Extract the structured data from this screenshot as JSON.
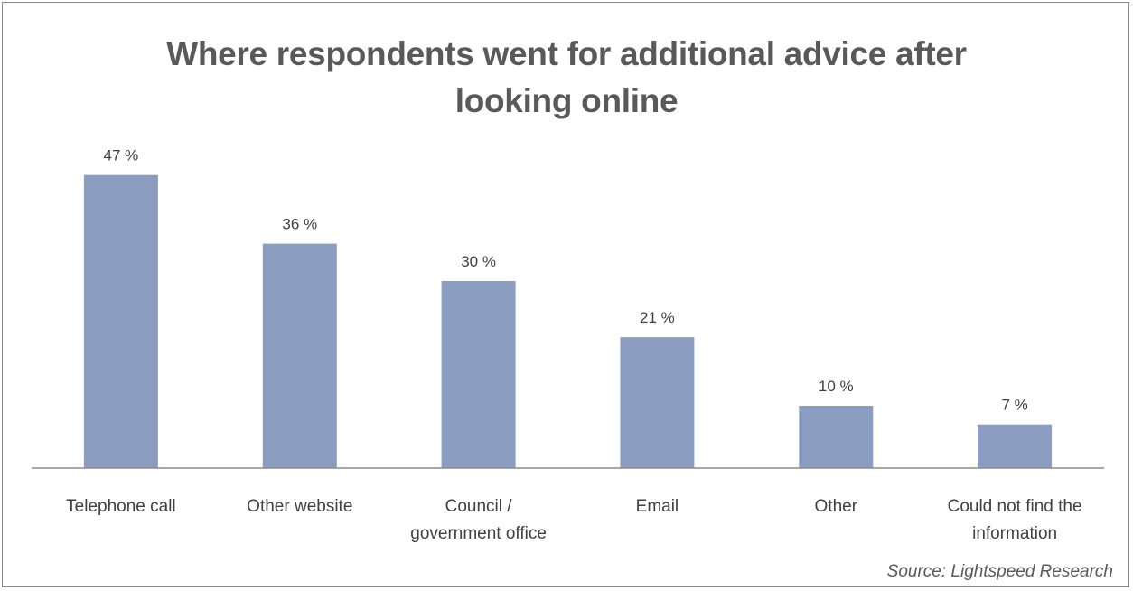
{
  "chart_data": {
    "type": "bar",
    "title_lines": [
      "Where respondents went for additional advice after",
      "looking online"
    ],
    "categories": [
      [
        "Telephone call"
      ],
      [
        "Other website"
      ],
      [
        "Council /",
        "government office"
      ],
      [
        "Email"
      ],
      [
        "Other"
      ],
      [
        "Could not find the",
        "information"
      ]
    ],
    "values": [
      47,
      36,
      30,
      21,
      10,
      7
    ],
    "value_labels": [
      "47 %",
      "36 %",
      "30 %",
      "21 %",
      "10 %",
      "7 %"
    ],
    "ylim": [
      0,
      50
    ],
    "grid": false,
    "legend": "none",
    "bar_color": "#8c9dc2",
    "source": "Source: Lightspeed Research"
  }
}
